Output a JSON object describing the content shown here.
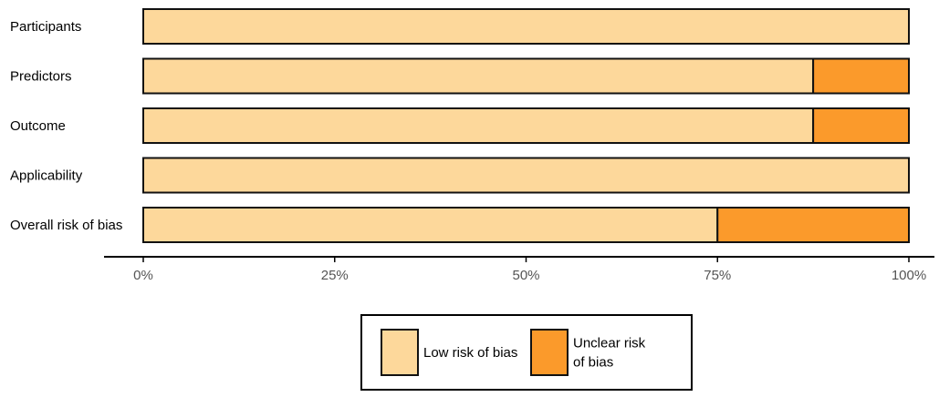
{
  "chart_data": {
    "type": "bar",
    "orientation": "horizontal",
    "stacked": true,
    "categories": [
      "Participants",
      "Predictors",
      "Outcome",
      "Applicability",
      "Overall risk of bias"
    ],
    "series": [
      {
        "name": "Low risk of bias",
        "color": "#fdd89b",
        "values": [
          100,
          87.5,
          87.5,
          100,
          75
        ]
      },
      {
        "name": "Unclear risk of bias",
        "color": "#fb9a2b",
        "values": [
          0,
          12.5,
          12.5,
          0,
          25
        ]
      }
    ],
    "xlim": [
      0,
      100
    ],
    "x_ticks": [
      "0%",
      "25%",
      "50%",
      "75%",
      "100%"
    ],
    "title": "",
    "xlabel": "",
    "ylabel": "",
    "grid": false,
    "legend": {
      "position": "bottom-center",
      "entries": [
        {
          "label_lines": [
            "Low risk of bias"
          ],
          "color": "#fdd89b"
        },
        {
          "label_lines": [
            "Unclear risk",
            "of bias"
          ],
          "color": "#fb9a2b"
        }
      ]
    }
  }
}
